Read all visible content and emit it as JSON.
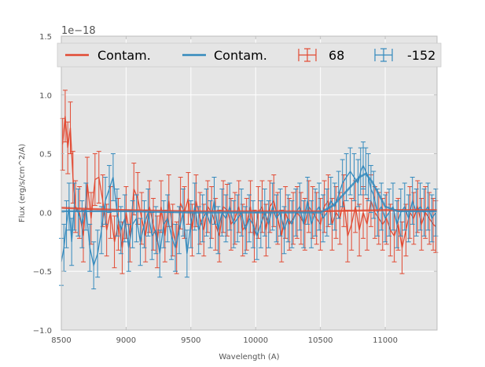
{
  "chart_data": {
    "type": "line",
    "title": "",
    "xlabel": "Wavelength (A)",
    "ylabel": "Flux (erg/s/cm^2/A)",
    "xlim": [
      8500,
      11400
    ],
    "ylim": [
      -1.0,
      1.5
    ],
    "y_offset_label": "1e−18",
    "grid": true,
    "legend_position": "top",
    "x_ticks": [
      8500,
      9000,
      9500,
      10000,
      10500,
      11000
    ],
    "x_tick_labels": [
      "8500",
      "9000",
      "9500",
      "10000",
      "10500",
      "11000"
    ],
    "y_ticks": [
      -1.0,
      -0.5,
      0.0,
      0.5,
      1.0,
      1.5
    ],
    "y_tick_labels": [
      "−1.0",
      "−0.5",
      "0.0",
      "0.5",
      "1.0",
      "1.5"
    ],
    "colors": {
      "red": "#e24a33",
      "blue": "#348abd",
      "background": "#e5e5e5",
      "grid": "#ffffff",
      "axes": "#bcbcbc"
    },
    "legend": [
      {
        "label": "Contam.",
        "kind": "line",
        "color": "#e24a33"
      },
      {
        "label": "Contam.",
        "kind": "line",
        "color": "#348abd"
      },
      {
        "label": "68",
        "kind": "errorbar",
        "color": "#e24a33"
      },
      {
        "label": "-152",
        "kind": "errorbar",
        "color": "#348abd"
      }
    ],
    "series": [
      {
        "name": "Contam.",
        "kind": "line",
        "color": "#e24a33",
        "x": [
          8500,
          8700,
          9000,
          9500,
          10000,
          10500,
          11000,
          11400
        ],
        "y": [
          0.04,
          0.03,
          0.02,
          0.01,
          0.01,
          0.01,
          0.02,
          0.02
        ]
      },
      {
        "name": "Contam.",
        "kind": "line",
        "color": "#348abd",
        "x": [
          8500,
          9000,
          9500,
          10000,
          10500,
          10600,
          10700,
          10800,
          10850,
          10900,
          11000,
          11100,
          11400
        ],
        "y": [
          0.01,
          0.01,
          0.0,
          0.0,
          0.0,
          0.06,
          0.18,
          0.3,
          0.33,
          0.26,
          0.05,
          0.01,
          0.01
        ]
      },
      {
        "name": "68",
        "kind": "errorbar",
        "color": "#e24a33",
        "err": 0.22,
        "x": [
          8510,
          8530,
          8550,
          8570,
          8590,
          8610,
          8640,
          8670,
          8700,
          8730,
          8760,
          8790,
          8820,
          8850,
          8880,
          8910,
          8940,
          8970,
          9000,
          9030,
          9060,
          9090,
          9120,
          9150,
          9180,
          9210,
          9240,
          9270,
          9300,
          9330,
          9360,
          9390,
          9420,
          9450,
          9480,
          9510,
          9540,
          9570,
          9600,
          9630,
          9660,
          9690,
          9720,
          9750,
          9780,
          9810,
          9840,
          9870,
          9900,
          9930,
          9960,
          9990,
          10020,
          10050,
          10080,
          10110,
          10140,
          10170,
          10200,
          10230,
          10260,
          10290,
          10320,
          10350,
          10380,
          10410,
          10440,
          10470,
          10500,
          10530,
          10560,
          10590,
          10620,
          10650,
          10680,
          10710,
          10740,
          10770,
          10800,
          10830,
          10860,
          10890,
          10920,
          10950,
          10980,
          11010,
          11040,
          11070,
          11100,
          11130,
          11160,
          11190,
          11220,
          11250,
          11280,
          11310,
          11340,
          11370,
          11390
        ],
        "y": [
          0.58,
          0.82,
          0.55,
          0.72,
          0.3,
          0.05,
          0.0,
          -0.2,
          0.25,
          -0.05,
          0.28,
          0.3,
          0.1,
          -0.15,
          0.0,
          -0.25,
          -0.1,
          -0.3,
          0.0,
          -0.2,
          0.2,
          0.12,
          -0.05,
          -0.2,
          0.05,
          -0.1,
          -0.25,
          0.05,
          -0.2,
          0.1,
          -0.15,
          -0.3,
          0.08,
          0.0,
          0.12,
          -0.15,
          0.1,
          -0.05,
          -0.15,
          0.05,
          0.0,
          -0.1,
          -0.2,
          0.05,
          0.02,
          -0.1,
          -0.05,
          0.05,
          -0.15,
          -0.1,
          0.05,
          -0.2,
          0.0,
          0.05,
          -0.15,
          0.05,
          0.1,
          -0.05,
          -0.2,
          0.0,
          -0.1,
          -0.05,
          0.0,
          -0.05,
          -0.1,
          0.05,
          0.0,
          -0.05,
          -0.1,
          0.05,
          0.1,
          -0.1,
          0.0,
          -0.05,
          0.1,
          -0.2,
          -0.1,
          0.05,
          -0.15,
          0.0,
          -0.1,
          0.1,
          0.0,
          -0.05,
          -0.1,
          -0.05,
          -0.15,
          -0.2,
          -0.1,
          -0.3,
          -0.15,
          0.0,
          -0.05,
          0.05,
          -0.1,
          0.0,
          -0.05,
          -0.1,
          -0.12
        ]
      },
      {
        "name": "-152",
        "kind": "errorbar",
        "color": "#348abd",
        "err": 0.2,
        "x": [
          8500,
          8520,
          8540,
          8560,
          8580,
          8600,
          8630,
          8660,
          8690,
          8720,
          8750,
          8780,
          8810,
          8840,
          8870,
          8900,
          8930,
          8960,
          8990,
          9020,
          9050,
          9080,
          9110,
          9140,
          9170,
          9200,
          9230,
          9260,
          9290,
          9320,
          9350,
          9380,
          9410,
          9440,
          9470,
          9500,
          9530,
          9560,
          9590,
          9620,
          9650,
          9680,
          9710,
          9740,
          9770,
          9800,
          9830,
          9860,
          9890,
          9920,
          9950,
          9980,
          10010,
          10040,
          10070,
          10100,
          10130,
          10160,
          10190,
          10220,
          10250,
          10280,
          10310,
          10340,
          10370,
          10400,
          10430,
          10460,
          10490,
          10520,
          10550,
          10580,
          10610,
          10640,
          10670,
          10700,
          10730,
          10760,
          10790,
          10810,
          10830,
          10850,
          10870,
          10890,
          10910,
          10940,
          10970,
          11000,
          11030,
          11060,
          11090,
          11120,
          11150,
          11180,
          11210,
          11240,
          11270,
          11300,
          11330,
          11360,
          11390
        ],
        "y": [
          -0.42,
          -0.3,
          -0.1,
          0.05,
          -0.25,
          0.05,
          0.0,
          -0.1,
          0.05,
          -0.3,
          -0.45,
          -0.35,
          -0.15,
          0.1,
          0.2,
          0.3,
          0.0,
          -0.15,
          -0.05,
          -0.3,
          -0.1,
          -0.05,
          -0.25,
          -0.1,
          0.0,
          -0.2,
          -0.15,
          -0.35,
          -0.1,
          -0.05,
          -0.2,
          -0.3,
          -0.15,
          0.0,
          -0.35,
          -0.1,
          0.05,
          -0.15,
          -0.05,
          0.0,
          -0.1,
          0.1,
          -0.15,
          0.0,
          -0.05,
          0.05,
          -0.1,
          -0.05,
          0.0,
          -0.15,
          -0.05,
          -0.1,
          -0.2,
          -0.1,
          0.0,
          -0.1,
          0.05,
          -0.05,
          0.0,
          -0.15,
          -0.05,
          -0.1,
          0.0,
          0.05,
          -0.1,
          0.1,
          -0.1,
          0.0,
          0.05,
          -0.05,
          0.0,
          0.1,
          0.05,
          0.15,
          0.25,
          0.3,
          0.35,
          0.3,
          0.25,
          0.35,
          0.4,
          0.35,
          0.3,
          0.2,
          0.15,
          0.0,
          0.05,
          -0.05,
          0.0,
          0.05,
          -0.1,
          0.0,
          0.05,
          -0.05,
          0.1,
          0.0,
          0.05,
          0.0,
          0.05,
          -0.05,
          0.0
        ]
      }
    ]
  }
}
